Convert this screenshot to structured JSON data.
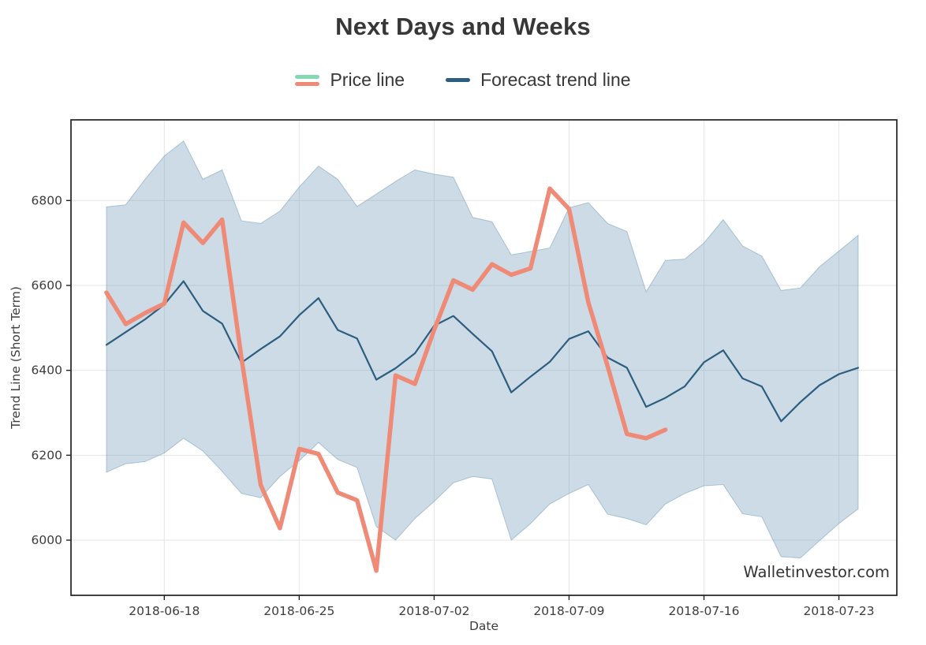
{
  "title": "Next Days and Weeks",
  "watermark": "Walletinvestor.com",
  "legend": [
    {
      "label": "Price line",
      "swatch_colors": [
        "#84d8b2",
        "#ef8a77"
      ]
    },
    {
      "label": "Forecast trend line",
      "swatch_colors": [
        "#2d5e7f"
      ]
    }
  ],
  "chart_data": {
    "type": "line",
    "title": "Next Days and Weeks",
    "xlabel": "Date",
    "ylabel": "Trend Line (Short Term)",
    "grid": true,
    "legend_position": "top-center",
    "ylim": [
      5870,
      6990
    ],
    "yticks": [
      6000,
      6200,
      6400,
      6600,
      6800
    ],
    "xticks": [
      "2018-06-18",
      "2018-06-25",
      "2018-07-02",
      "2018-07-09",
      "2018-07-16",
      "2018-07-23"
    ],
    "x": [
      "2018-06-15",
      "2018-06-16",
      "2018-06-17",
      "2018-06-18",
      "2018-06-19",
      "2018-06-20",
      "2018-06-21",
      "2018-06-22",
      "2018-06-23",
      "2018-06-24",
      "2018-06-25",
      "2018-06-26",
      "2018-06-27",
      "2018-06-28",
      "2018-06-29",
      "2018-06-30",
      "2018-07-01",
      "2018-07-02",
      "2018-07-03",
      "2018-07-04",
      "2018-07-05",
      "2018-07-06",
      "2018-07-07",
      "2018-07-08",
      "2018-07-09",
      "2018-07-10",
      "2018-07-11",
      "2018-07-12",
      "2018-07-13",
      "2018-07-14",
      "2018-07-15",
      "2018-07-16",
      "2018-07-17",
      "2018-07-18",
      "2018-07-19",
      "2018-07-20",
      "2018-07-21",
      "2018-07-22",
      "2018-07-23",
      "2018-07-24"
    ],
    "series": [
      {
        "name": "Price line",
        "color": "#ef8a77",
        "line_width": 5.5,
        "values": [
          6583,
          6509,
          6535,
          6557,
          6748,
          6700,
          6755,
          6430,
          6130,
          6028,
          6215,
          6203,
          6112,
          6094,
          5928,
          6388,
          6368,
          6495,
          6612,
          6590,
          6650,
          6625,
          6640,
          6828,
          6780,
          6560,
          6410,
          6250,
          6240,
          6260,
          null,
          null,
          null,
          null,
          null,
          null,
          null,
          null,
          null,
          null
        ]
      },
      {
        "name": "Forecast trend line",
        "color": "#2d5e7f",
        "line_width": 2.2,
        "values": [
          6460,
          6490,
          6520,
          6555,
          6610,
          6540,
          6510,
          6418,
          6450,
          6480,
          6530,
          6570,
          6495,
          6475,
          6378,
          6405,
          6440,
          6505,
          6528,
          6486,
          6445,
          6348,
          6385,
          6420,
          6474,
          6492,
          6430,
          6406,
          6314,
          6335,
          6362,
          6419,
          6447,
          6381,
          6362,
          6280,
          6325,
          6365,
          6391,
          6406
        ]
      }
    ],
    "band": {
      "name": "forecast-range",
      "fill": "#5f8fad",
      "fill_opacity": 0.32,
      "upper": [
        6785,
        6790,
        6850,
        6905,
        6940,
        6850,
        6872,
        6752,
        6746,
        6775,
        6832,
        6881,
        6850,
        6786,
        6815,
        6845,
        6872,
        6862,
        6855,
        6760,
        6750,
        6672,
        6680,
        6688,
        6783,
        6795,
        6746,
        6727,
        6585,
        6659,
        6662,
        6700,
        6755,
        6693,
        6669,
        6588,
        6594,
        6644,
        6681,
        6718
      ],
      "lower": [
        6160,
        6180,
        6185,
        6205,
        6240,
        6210,
        6162,
        6110,
        6100,
        6150,
        6187,
        6230,
        6190,
        6171,
        6032,
        6000,
        6051,
        6091,
        6135,
        6150,
        6144,
        6000,
        6039,
        6085,
        6110,
        6131,
        6061,
        6051,
        6036,
        6085,
        6110,
        6128,
        6131,
        6062,
        6055,
        5961,
        5958,
        5999,
        6039,
        6074
      ]
    },
    "colors": {
      "grid": "#e6e6e6",
      "spine": "#222222",
      "tick_text": "#3d3d3d",
      "title_text": "#373737",
      "watermark_text": "#333333"
    }
  }
}
